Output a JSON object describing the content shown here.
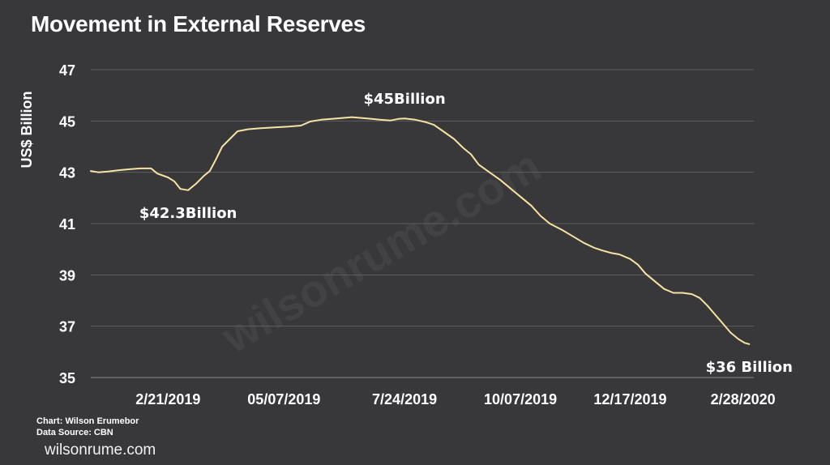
{
  "watermark": "wilsonrume.com",
  "footer": {
    "chart_credit": "Chart: Wilson Erumebor",
    "data_source": "Data Source: CBN",
    "site": "wilsonrume.com"
  },
  "colors": {
    "background": "#38373a",
    "line": "#f6e3a2",
    "grid": "#5e5d60",
    "text": "#ffffff"
  },
  "chart_data": {
    "type": "line",
    "title": "Movement in External Reserves",
    "xlabel": "",
    "ylabel": "US$ Billion",
    "ylim": [
      35,
      47
    ],
    "yticks": [
      35,
      37,
      39,
      41,
      43,
      45,
      47
    ],
    "xlim": [
      "2019-01-02",
      "2020-03-06"
    ],
    "xticks": [
      {
        "date": "2019-02-21",
        "label": "2/21/2019"
      },
      {
        "date": "2019-05-07",
        "label": "05/07/2019"
      },
      {
        "date": "2019-07-24",
        "label": "7/24/2019"
      },
      {
        "date": "2019-10-07",
        "label": "10/07/2019"
      },
      {
        "date": "2019-12-17",
        "label": "12/17/2019"
      },
      {
        "date": "2020-02-28",
        "label": "2/28/2020"
      }
    ],
    "grid": true,
    "series": [
      {
        "points": [
          [
            "2019-01-02",
            43.05
          ],
          [
            "2019-01-07",
            43.0
          ],
          [
            "2019-01-13",
            43.03
          ],
          [
            "2019-01-20",
            43.08
          ],
          [
            "2019-01-27",
            43.12
          ],
          [
            "2019-02-03",
            43.15
          ],
          [
            "2019-02-10",
            43.15
          ],
          [
            "2019-02-14",
            42.95
          ],
          [
            "2019-02-21",
            42.8
          ],
          [
            "2019-02-25",
            42.65
          ],
          [
            "2019-03-01",
            42.35
          ],
          [
            "2019-03-06",
            42.3
          ],
          [
            "2019-03-11",
            42.55
          ],
          [
            "2019-03-16",
            42.85
          ],
          [
            "2019-03-20",
            43.05
          ],
          [
            "2019-03-24",
            43.5
          ],
          [
            "2019-03-28",
            44.0
          ],
          [
            "2019-04-02",
            44.3
          ],
          [
            "2019-04-07",
            44.6
          ],
          [
            "2019-04-14",
            44.68
          ],
          [
            "2019-04-22",
            44.72
          ],
          [
            "2019-05-01",
            44.75
          ],
          [
            "2019-05-10",
            44.78
          ],
          [
            "2019-05-18",
            44.82
          ],
          [
            "2019-05-24",
            44.98
          ],
          [
            "2019-05-31",
            45.05
          ],
          [
            "2019-06-10",
            45.1
          ],
          [
            "2019-06-20",
            45.15
          ],
          [
            "2019-06-30",
            45.1
          ],
          [
            "2019-07-08",
            45.05
          ],
          [
            "2019-07-15",
            45.02
          ],
          [
            "2019-07-20",
            45.08
          ],
          [
            "2019-07-24",
            45.1
          ],
          [
            "2019-07-31",
            45.05
          ],
          [
            "2019-08-07",
            44.95
          ],
          [
            "2019-08-12",
            44.85
          ],
          [
            "2019-08-18",
            44.6
          ],
          [
            "2019-08-25",
            44.3
          ],
          [
            "2019-08-31",
            43.95
          ],
          [
            "2019-09-05",
            43.7
          ],
          [
            "2019-09-10",
            43.3
          ],
          [
            "2019-09-17",
            43.0
          ],
          [
            "2019-09-24",
            42.7
          ],
          [
            "2019-09-30",
            42.4
          ],
          [
            "2019-10-07",
            42.05
          ],
          [
            "2019-10-14",
            41.7
          ],
          [
            "2019-10-20",
            41.3
          ],
          [
            "2019-10-26",
            41.0
          ],
          [
            "2019-11-03",
            40.75
          ],
          [
            "2019-11-10",
            40.5
          ],
          [
            "2019-11-17",
            40.25
          ],
          [
            "2019-11-24",
            40.05
          ],
          [
            "2019-11-29",
            39.95
          ],
          [
            "2019-12-05",
            39.85
          ],
          [
            "2019-12-10",
            39.8
          ],
          [
            "2019-12-17",
            39.62
          ],
          [
            "2019-12-22",
            39.4
          ],
          [
            "2019-12-27",
            39.05
          ],
          [
            "2020-01-02",
            38.75
          ],
          [
            "2020-01-08",
            38.45
          ],
          [
            "2020-01-14",
            38.3
          ],
          [
            "2020-01-20",
            38.3
          ],
          [
            "2020-01-26",
            38.25
          ],
          [
            "2020-01-31",
            38.1
          ],
          [
            "2020-02-05",
            37.8
          ],
          [
            "2020-02-10",
            37.45
          ],
          [
            "2020-02-15",
            37.1
          ],
          [
            "2020-02-20",
            36.75
          ],
          [
            "2020-02-25",
            36.5
          ],
          [
            "2020-02-29",
            36.35
          ],
          [
            "2020-03-03",
            36.3
          ]
        ]
      }
    ],
    "annotations": [
      {
        "text": "$42.3Billion",
        "date": "2019-03-06",
        "value": 42.3,
        "position": "below"
      },
      {
        "text": "$45Billion",
        "date": "2019-07-24",
        "value": 45.1,
        "position": "above"
      },
      {
        "text": "$36 Billion",
        "date": "2020-03-03",
        "value": 36.3,
        "position": "below"
      }
    ]
  }
}
